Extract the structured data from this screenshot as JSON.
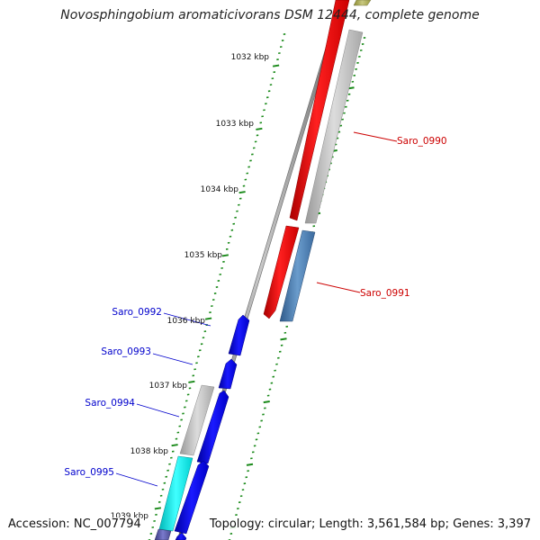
{
  "title": "Novosphingobium aromaticivorans DSM 12444, complete genome",
  "footer": {
    "accession_label": "Accession:",
    "accession": "NC_007794",
    "topology_label": "Topology:",
    "topology": "circular",
    "length_label": "Length:",
    "length": "3,561,584 bp",
    "genes_label": "Genes:",
    "genes": "3,397",
    "summary": "Topology: circular; Length: 3,561,584 bp; Genes: 3,397"
  },
  "ruler": {
    "unit": "kbp",
    "ticks": [
      "1032 kbp",
      "1033 kbp",
      "1034 kbp",
      "1035 kbp",
      "1036 kbp",
      "1037 kbp",
      "1038 kbp",
      "1039 kbp"
    ]
  },
  "genes": [
    {
      "id": "Saro_0990",
      "strand": "+",
      "colors": {
        "forward": "#ff0000",
        "reverse": "#b8b8b8"
      },
      "label_color": "#cc0000"
    },
    {
      "id": "Saro_0991",
      "strand": "+",
      "colors": {
        "forward": "#ff0000",
        "reverse": "#4a78b0"
      },
      "label_color": "#cc0000"
    },
    {
      "id": "Saro_0992",
      "strand": "-",
      "colors": {
        "forward": "#0000ee"
      },
      "label_color": "#0000cc"
    },
    {
      "id": "Saro_0993",
      "strand": "-",
      "colors": {
        "forward": "#0000ee"
      },
      "label_color": "#0000cc"
    },
    {
      "id": "Saro_0994",
      "strand": "-",
      "colors": {
        "forward": "#0000ee",
        "reverse": "#b8b8b8"
      },
      "label_color": "#0000cc"
    },
    {
      "id": "Saro_0995",
      "strand": "-",
      "colors": {
        "forward": "#0000ee",
        "reverse": "#00e5e5"
      },
      "label_color": "#0000cc"
    }
  ],
  "colors": {
    "backbone": "#8a8a8a",
    "ruler": "#1a8a1a",
    "positive_label": "#cc0000",
    "negative_label": "#0000cc"
  }
}
